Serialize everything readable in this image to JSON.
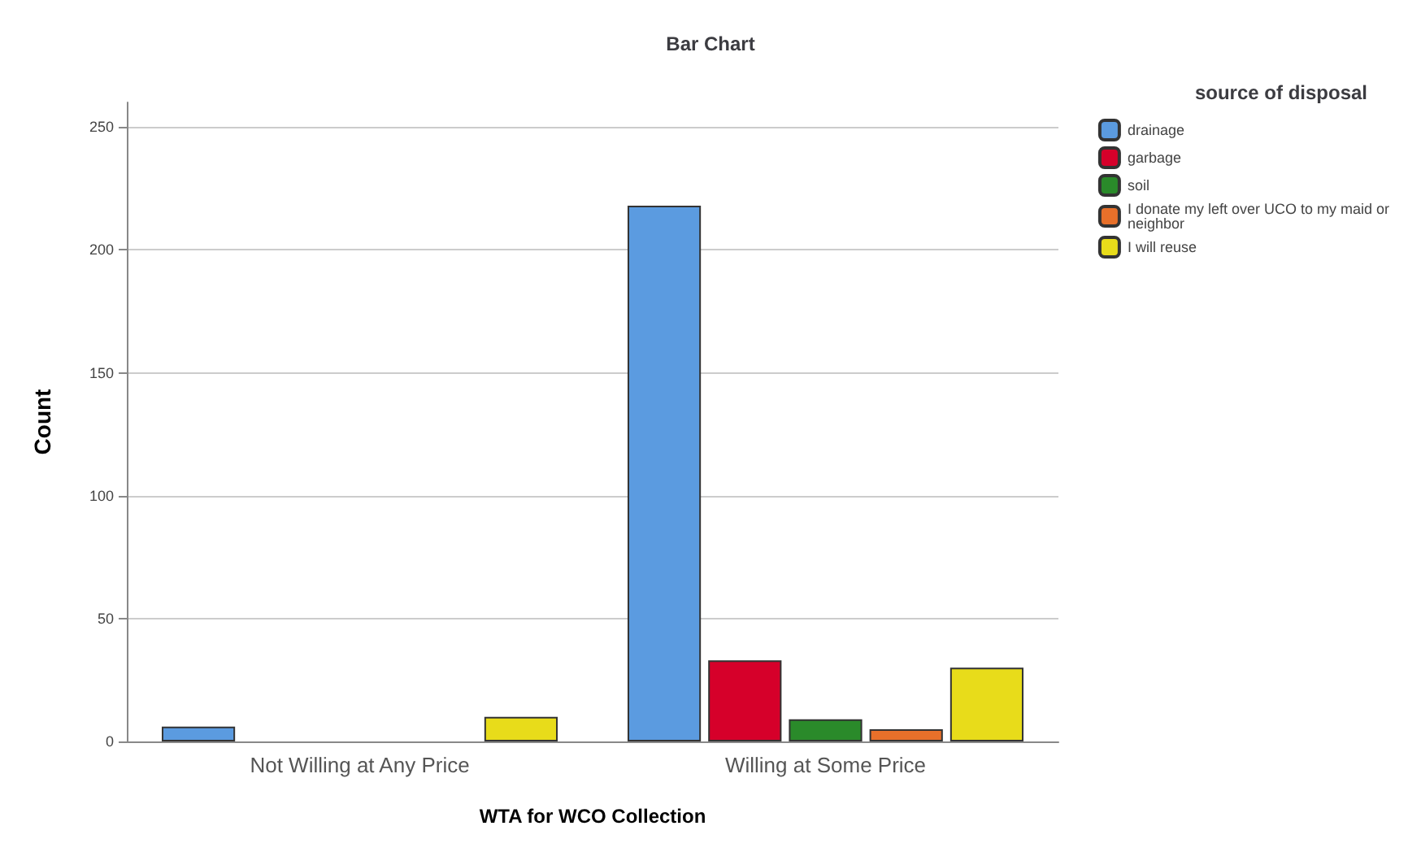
{
  "chart_data": {
    "type": "bar",
    "title": "Bar Chart",
    "xlabel": "WTA for WCO Collection",
    "ylabel": "Count",
    "legend_title": "source of disposal",
    "categories": [
      "Not Willing at Any Price",
      "Willing at Some Price"
    ],
    "series": [
      {
        "name": "drainage",
        "color": "#5b9be0",
        "values": [
          6,
          218
        ]
      },
      {
        "name": "garbage",
        "color": "#d6002a",
        "values": [
          null,
          33
        ]
      },
      {
        "name": "soil",
        "color": "#2a8a2a",
        "values": [
          null,
          9
        ]
      },
      {
        "name": "I donate my left over UCO to my maid or neighbor",
        "color": "#e8702a",
        "values": [
          null,
          5
        ]
      },
      {
        "name": "I will reuse",
        "color": "#e8dc1a",
        "values": [
          10,
          30
        ]
      }
    ],
    "ylim": [
      0,
      260
    ],
    "yticks": [
      0,
      50,
      100,
      150,
      200,
      250
    ],
    "grid": "y",
    "legend": "top right"
  }
}
